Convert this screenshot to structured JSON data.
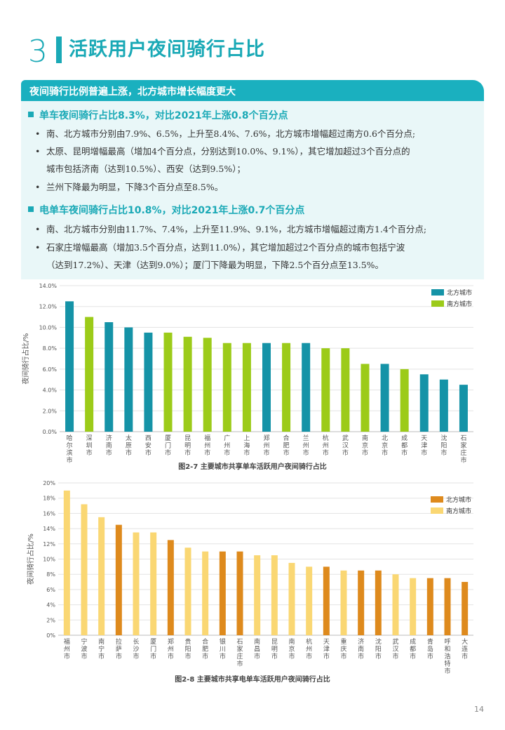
{
  "section": {
    "number": "3",
    "title": "活跃用户夜间骑行占比"
  },
  "banner": "夜间骑行比例普遍上涨，北方城市增长幅度更大",
  "bike_section": {
    "heading": "单车夜间骑行占比8.3%，对比2021年上涨0.8个百分点",
    "bullets": [
      "南、北方城市分别由7.9%、6.5%，上升至8.4%、7.6%，北方城市增幅超过南方0.6个百分点;",
      "太原、昆明增幅最高（增加4个百分点，分别达到10.0%、9.1%），其它增加超过3个百分点的",
      "城市包括济南（达到10.5%）、西安（达到9.5%）；",
      "兰州下降最为明显，下降3个百分点至8.5%。"
    ]
  },
  "ebike_section": {
    "heading": "电单车夜间骑行占比10.8%，对比2021年上涨0.7个百分点",
    "bullets": [
      "南、北方城市分别由11.7%、7.4%，上升至11.9%、9.1%，北方城市增幅超过南方1.4个百分点;",
      "石家庄增幅最高（增加3.5个百分点，达到11.0%），其它增加超过2个百分点的城市包括宁波",
      "（达到17.2%）、天津（达到9.0%）；厦门下降最为明显，下降2.5个百分点至13.5%。"
    ]
  },
  "page_number": "14",
  "chart_data": [
    {
      "type": "bar",
      "title": "图2-7 主要城市共享单车活跃用户夜间骑行占比",
      "ylabel": "夜间骑行占比/%",
      "ylim": [
        0,
        14
      ],
      "yticks": [
        "0.0%",
        "2.0%",
        "4.0%",
        "6.0%",
        "8.0%",
        "10.0%",
        "12.0%",
        "14.0%"
      ],
      "legend": [
        {
          "name": "北方城市",
          "color": "#1593a7"
        },
        {
          "name": "南方城市",
          "color": "#9ccb19"
        }
      ],
      "legend_position": "top-right",
      "categories": [
        "哈尔滨市",
        "深圳市",
        "济南市",
        "太原市",
        "西安市",
        "厦门市",
        "昆明市",
        "福州市",
        "广州市",
        "上海市",
        "郑州市",
        "合肥市",
        "兰州市",
        "杭州市",
        "武汉市",
        "南京市",
        "北京市",
        "成都市",
        "天津市",
        "沈阳市",
        "石家庄市"
      ],
      "values": [
        12.5,
        11.0,
        10.5,
        10.0,
        9.5,
        9.5,
        9.1,
        9.0,
        8.5,
        8.5,
        8.5,
        8.5,
        8.5,
        8.0,
        8.0,
        6.5,
        6.5,
        6.0,
        5.5,
        5.0,
        4.5
      ],
      "groups": [
        "北方城市",
        "南方城市",
        "北方城市",
        "北方城市",
        "北方城市",
        "南方城市",
        "南方城市",
        "南方城市",
        "南方城市",
        "南方城市",
        "北方城市",
        "南方城市",
        "北方城市",
        "南方城市",
        "南方城市",
        "南方城市",
        "北方城市",
        "南方城市",
        "北方城市",
        "北方城市",
        "北方城市"
      ]
    },
    {
      "type": "bar",
      "title": "图2-8 主要城市共享电单车活跃用户夜间骑行占比",
      "ylabel": "夜间骑行占比/%",
      "ylim": [
        0,
        20
      ],
      "yticks": [
        "0%",
        "2%",
        "4%",
        "6%",
        "8%",
        "10%",
        "12%",
        "14%",
        "16%",
        "18%",
        "20%"
      ],
      "legend": [
        {
          "name": "北方城市",
          "color": "#de8a1d"
        },
        {
          "name": "南方城市",
          "color": "#fad773"
        }
      ],
      "legend_position": "top-right",
      "categories": [
        "福州市",
        "宁波市",
        "南宁市",
        "拉萨市",
        "长沙市",
        "厦门市",
        "郑州市",
        "贵阳市",
        "合肥市",
        "银川市",
        "石家庄市",
        "南昌市",
        "昆明市",
        "南京市",
        "杭州市",
        "天津市",
        "重庆市",
        "济南市",
        "沈阳市",
        "武汉市",
        "成都市",
        "青岛市",
        "呼和浩特市",
        "大连市"
      ],
      "values": [
        19.0,
        17.2,
        15.5,
        14.5,
        13.5,
        13.5,
        12.5,
        11.5,
        11.0,
        11.0,
        11.0,
        10.5,
        10.5,
        9.5,
        9.0,
        9.0,
        8.5,
        8.5,
        8.5,
        8.0,
        7.5,
        7.5,
        7.5,
        7.0
      ],
      "groups": [
        "南方城市",
        "南方城市",
        "南方城市",
        "北方城市",
        "南方城市",
        "南方城市",
        "北方城市",
        "南方城市",
        "南方城市",
        "北方城市",
        "北方城市",
        "南方城市",
        "南方城市",
        "南方城市",
        "南方城市",
        "北方城市",
        "南方城市",
        "北方城市",
        "北方城市",
        "南方城市",
        "南方城市",
        "北方城市",
        "北方城市",
        "北方城市"
      ]
    }
  ]
}
